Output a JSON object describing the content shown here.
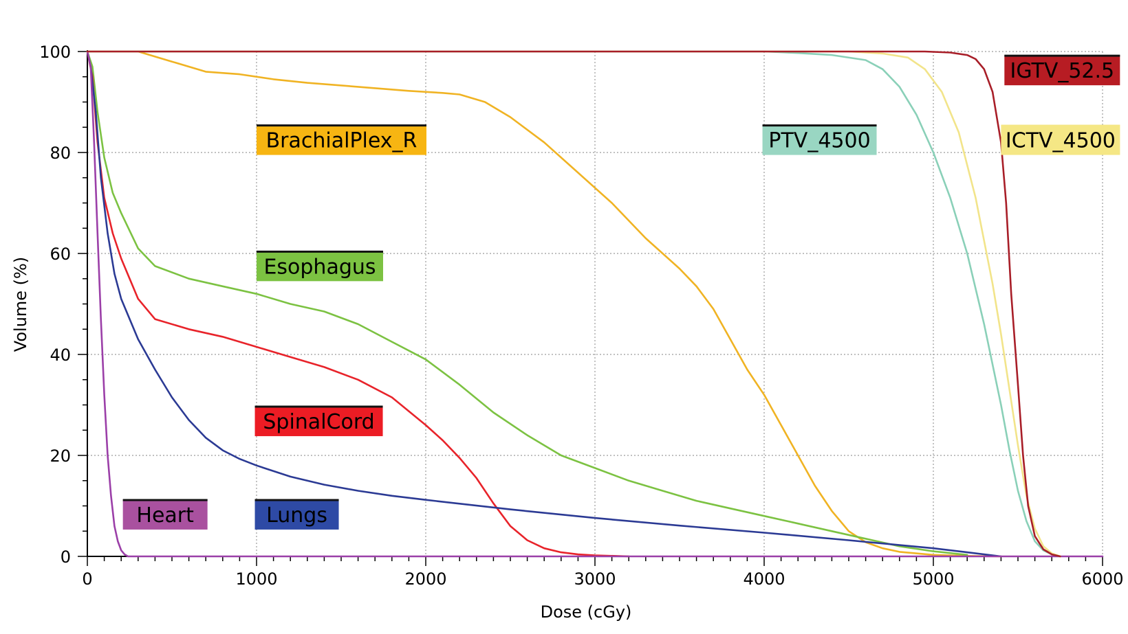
{
  "chart_data": {
    "type": "line",
    "title": "",
    "xlabel": "Dose (cGy)",
    "ylabel": "Volume (%)",
    "xlim": [
      0,
      6000
    ],
    "ylim": [
      0,
      100
    ],
    "xticks": [
      0,
      1000,
      2000,
      3000,
      4000,
      5000,
      6000
    ],
    "yticks": [
      0,
      20,
      40,
      60,
      80,
      100
    ],
    "grid": true,
    "legend": "inline-labels",
    "series": [
      {
        "name": "BrachialPlex_R",
        "color": "#f0b323",
        "label_bg": "#f7b512",
        "x": [
          0,
          300,
          500,
          700,
          900,
          1100,
          1300,
          1600,
          1900,
          2100,
          2200,
          2350,
          2500,
          2700,
          2900,
          3100,
          3300,
          3500,
          3600,
          3700,
          3800,
          3900,
          4000,
          4100,
          4200,
          4300,
          4400,
          4500,
          4600,
          4700,
          4800,
          5000,
          5200,
          5400
        ],
        "y": [
          100,
          100,
          98,
          96,
          95.5,
          94.5,
          93.8,
          93,
          92.2,
          91.8,
          91.5,
          90,
          87,
          82,
          76,
          70,
          63,
          57,
          53.5,
          49,
          43,
          37,
          32,
          26,
          20,
          14,
          9,
          5,
          2.8,
          1.6,
          0.9,
          0.3,
          0.1,
          0
        ]
      },
      {
        "name": "Esophagus",
        "color": "#7cc242",
        "label_bg": "#7cc242",
        "x": [
          0,
          30,
          60,
          100,
          150,
          200,
          300,
          400,
          600,
          800,
          1000,
          1200,
          1400,
          1600,
          1800,
          2000,
          2200,
          2400,
          2600,
          2800,
          3000,
          3200,
          3400,
          3600,
          3800,
          4000,
          4200,
          4400,
          4600,
          4800,
          5000,
          5200
        ],
        "y": [
          100,
          97,
          88,
          79,
          72,
          68,
          61,
          57.5,
          55,
          53.5,
          52,
          50,
          48.5,
          46,
          42.5,
          39,
          34,
          28.5,
          24,
          20,
          17.5,
          15,
          13,
          11,
          9.5,
          8,
          6.5,
          5,
          3.5,
          2,
          1,
          0.3
        ]
      },
      {
        "name": "SpinalCord",
        "color": "#e8232a",
        "label_bg": "#ec1c24",
        "x": [
          0,
          30,
          60,
          100,
          150,
          200,
          300,
          400,
          600,
          800,
          1000,
          1200,
          1400,
          1600,
          1800,
          2000,
          2100,
          2200,
          2300,
          2400,
          2500,
          2600,
          2700,
          2800,
          2900,
          3000,
          3200
        ],
        "y": [
          100,
          95,
          82,
          71,
          64,
          59,
          51,
          47,
          45,
          43.5,
          41.5,
          39.5,
          37.5,
          35,
          31.5,
          26,
          23,
          19.5,
          15.5,
          10.5,
          6,
          3.2,
          1.6,
          0.8,
          0.4,
          0.2,
          0
        ]
      },
      {
        "name": "Lungs",
        "color": "#2b3a94",
        "label_bg": "#2e4aa5",
        "x": [
          0,
          20,
          50,
          80,
          120,
          160,
          200,
          300,
          400,
          500,
          600,
          700,
          800,
          900,
          1000,
          1200,
          1400,
          1600,
          1800,
          2000,
          2500,
          3000,
          3500,
          4000,
          4500,
          5000,
          5200,
          5400
        ],
        "y": [
          100,
          97,
          88,
          75,
          64,
          56,
          51,
          43,
          37,
          31.5,
          27,
          23.5,
          21,
          19.3,
          18,
          15.8,
          14.2,
          13,
          12,
          11.2,
          9.3,
          7.6,
          6.1,
          4.7,
          3.2,
          1.6,
          0.8,
          0
        ]
      },
      {
        "name": "Heart",
        "color": "#9b3fa8",
        "label_bg": "#a9519f",
        "x": [
          0,
          20,
          40,
          60,
          80,
          100,
          120,
          140,
          160,
          180,
          200,
          220,
          240,
          2000,
          6000
        ],
        "y": [
          100,
          97,
          82,
          64,
          47,
          32,
          20,
          12,
          6,
          3,
          1.2,
          0.4,
          0,
          0,
          0
        ]
      },
      {
        "name": "PTV_4500",
        "color": "#8ad0b8",
        "label_bg": "#99d6c2",
        "x": [
          0,
          4000,
          4200,
          4400,
          4600,
          4700,
          4800,
          4900,
          5000,
          5100,
          5200,
          5300,
          5400,
          5450,
          5500,
          5550,
          5600,
          5650,
          5700,
          5750
        ],
        "y": [
          100,
          100,
          99.7,
          99.3,
          98.3,
          96.5,
          93,
          87.5,
          80,
          71,
          60,
          46,
          30,
          21,
          13,
          7,
          3,
          1.2,
          0.4,
          0
        ]
      },
      {
        "name": "ICTV_4500",
        "color": "#f2e48a",
        "label_bg": "#f5e785",
        "x": [
          0,
          4500,
          4700,
          4850,
          4950,
          5050,
          5150,
          5250,
          5350,
          5400,
          5450,
          5500,
          5550,
          5600,
          5650,
          5700,
          5750
        ],
        "y": [
          100,
          100,
          99.6,
          98.8,
          96.5,
          92,
          84,
          71,
          54,
          44,
          33,
          22,
          12,
          5.5,
          2,
          0.6,
          0
        ]
      },
      {
        "name": "IGTV_52.5",
        "color": "#a81e28",
        "label_bg": "#b71c23",
        "x": [
          0,
          4800,
          4950,
          5100,
          5200,
          5250,
          5300,
          5350,
          5400,
          5430,
          5460,
          5500,
          5530,
          5560,
          5600,
          5650,
          5700,
          5750
        ],
        "y": [
          100,
          100,
          100,
          99.8,
          99.3,
          98.5,
          96.5,
          92,
          82,
          70,
          52,
          34,
          20,
          10,
          4,
          1.4,
          0.4,
          0
        ]
      }
    ]
  }
}
